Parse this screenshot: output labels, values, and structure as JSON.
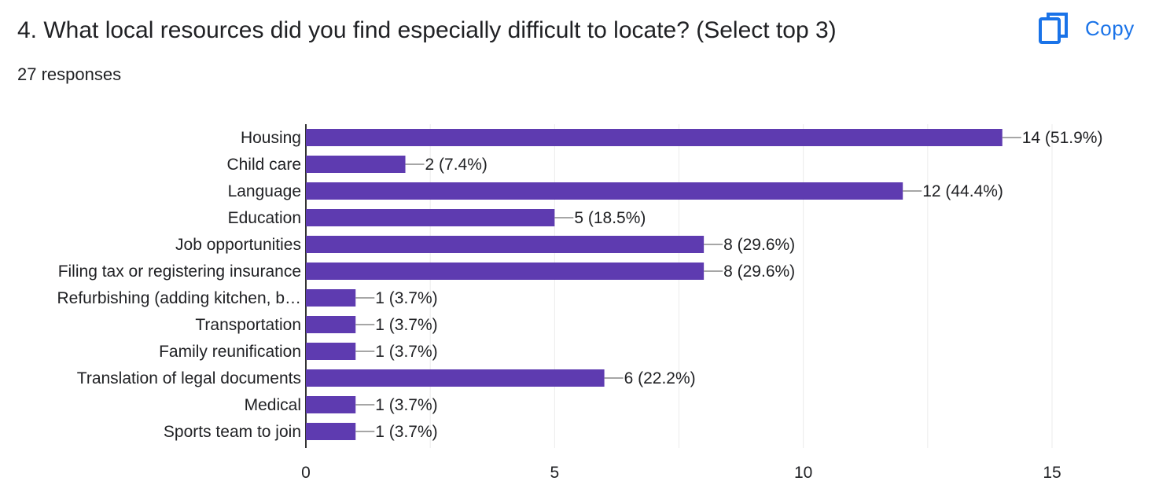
{
  "question": {
    "title": "4. What local resources did you find especially difficult to locate? (Select top 3)",
    "responses": "27 responses"
  },
  "copy_button": {
    "label": "Copy",
    "icon": "copy-icon",
    "color": "#1a73e8"
  },
  "chart_data": {
    "type": "bar",
    "orientation": "horizontal",
    "categories": [
      "Housing",
      "Child care",
      "Language",
      "Education",
      "Job opportunities",
      "Filing tax or registering insurance",
      "Refurbishing (adding kitchen, b…",
      "Transportation",
      "Family reunification",
      "Translation of legal documents",
      "Medical",
      "Sports team to join"
    ],
    "values": [
      14,
      2,
      12,
      5,
      8,
      8,
      1,
      1,
      1,
      6,
      1,
      1
    ],
    "data_labels": [
      "14 (51.9%)",
      "2 (7.4%)",
      "12 (44.4%)",
      "5 (18.5%)",
      "8 (29.6%)",
      "8 (29.6%)",
      "1 (3.7%)",
      "1 (3.7%)",
      "1 (3.7%)",
      "6 (22.2%)",
      "1 (3.7%)",
      "1 (3.7%)"
    ],
    "xlim": [
      0,
      15
    ],
    "x_ticks": [
      0,
      5,
      10,
      15
    ],
    "grid": true,
    "bar_color": "#5e3bb0"
  }
}
